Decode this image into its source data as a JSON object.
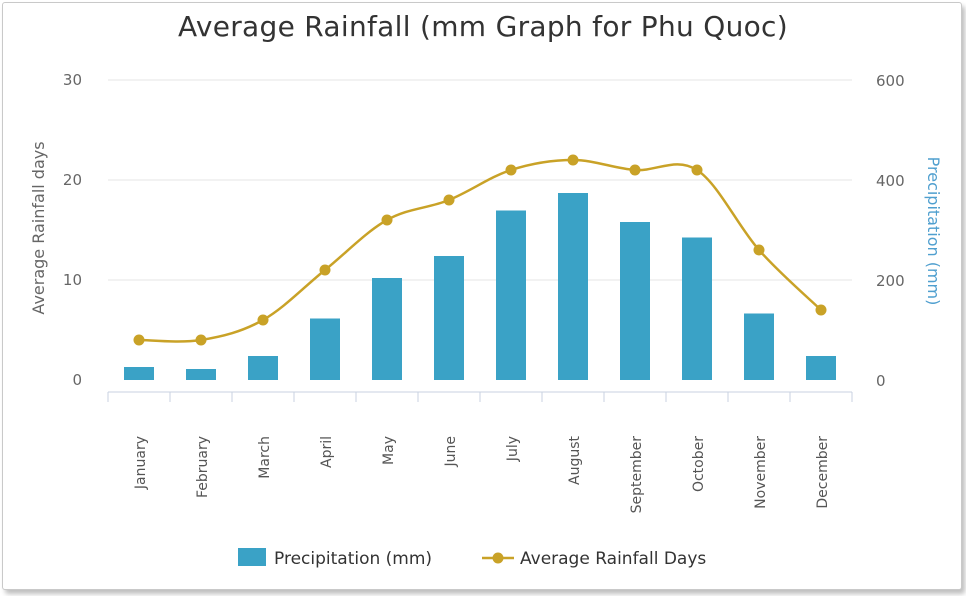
{
  "chart_data": {
    "type": "bar",
    "title": "Average Rainfall (mm Graph for Phu Quoc)",
    "categories": [
      "January",
      "February",
      "March",
      "April",
      "May",
      "June",
      "July",
      "August",
      "September",
      "October",
      "November",
      "December"
    ],
    "series": [
      {
        "name": "Precipitation (mm)",
        "type": "bar",
        "axis": "right",
        "color": "#3aa2c6",
        "values": [
          26,
          22,
          48,
          123,
          204,
          248,
          339,
          374,
          316,
          285,
          133,
          48
        ]
      },
      {
        "name": "Average Rainfall Days",
        "type": "line",
        "axis": "left",
        "color": "#c9a227",
        "values": [
          4,
          4,
          6,
          11,
          16,
          18,
          21,
          22,
          21,
          21,
          13,
          7
        ]
      }
    ],
    "y_left": {
      "label": "Average Rainfall days",
      "ticks": [
        0,
        10,
        20,
        30
      ],
      "ylim": [
        0,
        30
      ],
      "color": "#666666"
    },
    "y_right": {
      "label": "Precipitation (mm)",
      "ticks": [
        0,
        200,
        400,
        600
      ],
      "ylim": [
        0,
        600
      ],
      "color": "#4f9fcf"
    },
    "grid": true,
    "legend": "bottom"
  }
}
